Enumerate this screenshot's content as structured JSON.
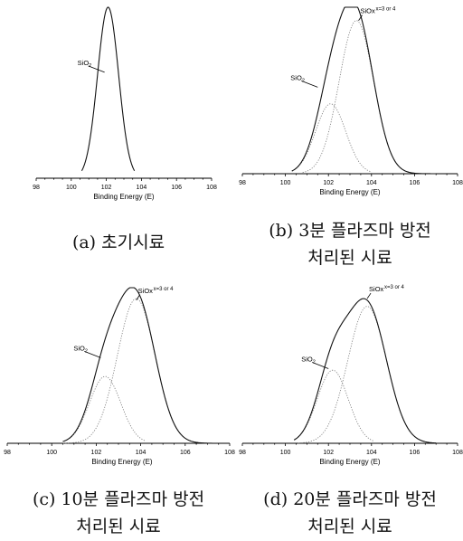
{
  "chart_data": [
    {
      "type": "line",
      "panel": "a",
      "caption_lines": [
        "(a) 초기시료"
      ],
      "xlabel": "Binding Energy (E)",
      "xlim": [
        98,
        108
      ],
      "xticks": [
        98,
        100,
        102,
        104,
        106,
        108
      ],
      "components": [
        {
          "name": "SiO2",
          "center": 102.1,
          "sigma": 0.6,
          "amp": 1.0,
          "range": [
            100.6,
            103.6
          ]
        }
      ],
      "annotations": [
        {
          "label": "SiO",
          "sub": "2",
          "sup": "",
          "x": 101.9,
          "y": 0.62
        }
      ]
    },
    {
      "type": "line",
      "panel": "b",
      "caption_lines": [
        "(b) 3분 플라즈마 방전",
        "처리된 시료"
      ],
      "xlabel": "Binding Energy (E)",
      "xlim": [
        98,
        108
      ],
      "xticks": [
        98,
        100,
        102,
        104,
        106,
        108
      ],
      "components": [
        {
          "name": "SiO2",
          "center": 102.1,
          "sigma": 0.7,
          "amp": 0.42,
          "range": [
            100.3,
            104.0
          ]
        },
        {
          "name": "SiOx",
          "center": 103.3,
          "sigma": 0.8,
          "amp": 0.92,
          "range": [
            100.8,
            107.0
          ]
        }
      ],
      "annotations": [
        {
          "label": "SiO",
          "sub": "2",
          "sup": "",
          "x": 101.5,
          "y": 0.52
        },
        {
          "label": "SiOx",
          "sub": "",
          "sup": "x=3 or 4",
          "x": 103.4,
          "y": 0.92
        }
      ]
    },
    {
      "type": "line",
      "panel": "c",
      "caption_lines": [
        "(c) 10분 플라즈마 방전",
        "처리된 시료"
      ],
      "xlabel": "Binding Energy (E)",
      "xlim": [
        98,
        108
      ],
      "xticks": [
        98,
        100,
        102,
        104,
        106,
        108
      ],
      "components": [
        {
          "name": "SiO2",
          "center": 102.4,
          "sigma": 0.7,
          "amp": 0.43,
          "range": [
            100.8,
            104.2
          ]
        },
        {
          "name": "SiOx",
          "center": 103.8,
          "sigma": 0.85,
          "amp": 0.93,
          "range": [
            100.5,
            107.2
          ]
        }
      ],
      "annotations": [
        {
          "label": "SiO",
          "sub": "2",
          "sup": "",
          "x": 102.2,
          "y": 0.55
        },
        {
          "label": "SiOx",
          "sub": "",
          "sup": "x=3 or 4",
          "x": 103.8,
          "y": 0.92
        }
      ]
    },
    {
      "type": "line",
      "panel": "d",
      "caption_lines": [
        "(d) 20분 플라즈마 방전",
        "처리된 시료"
      ],
      "xlabel": "Binding Energy (E)",
      "xlim": [
        98,
        108
      ],
      "xticks": [
        98,
        100,
        102,
        104,
        106,
        108
      ],
      "components": [
        {
          "name": "SiO2",
          "center": 102.2,
          "sigma": 0.72,
          "amp": 0.47,
          "range": [
            100.4,
            104.1
          ]
        },
        {
          "name": "SiOx",
          "center": 103.8,
          "sigma": 0.9,
          "amp": 0.88,
          "range": [
            100.6,
            107.0
          ]
        }
      ],
      "annotations": [
        {
          "label": "SiO",
          "sub": "2",
          "sup": "",
          "x": 102.0,
          "y": 0.48
        },
        {
          "label": "SiOx",
          "sub": "",
          "sup": "x=3 or 4",
          "x": 103.8,
          "y": 0.93
        }
      ]
    }
  ]
}
